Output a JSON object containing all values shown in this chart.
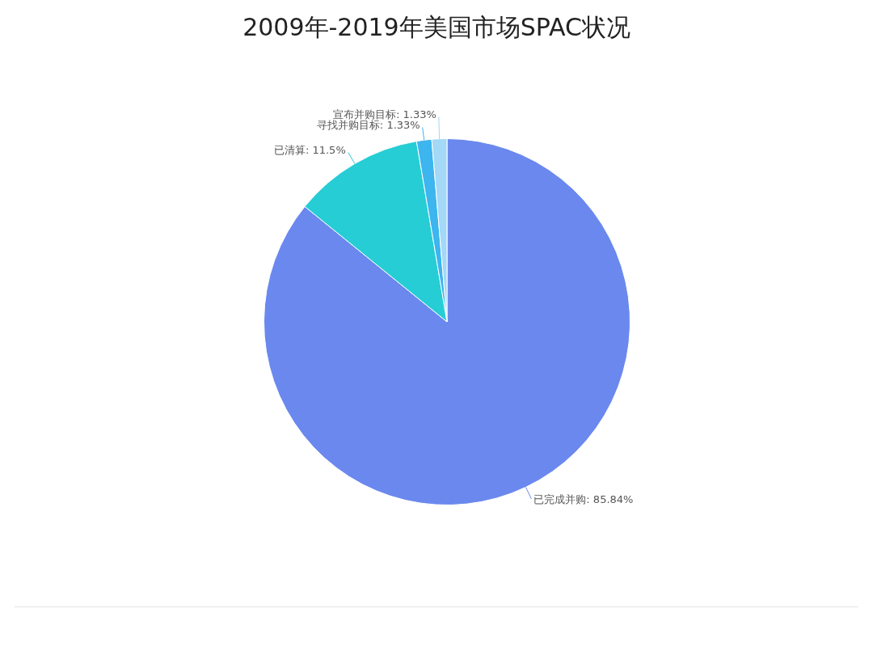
{
  "chart_data": {
    "type": "pie",
    "title": "2009年-2019年美国市场SPAC状况",
    "categories": [
      "已完成并购",
      "已清算",
      "寻找并购目标",
      "宣布并购目标"
    ],
    "values": [
      85.84,
      11.5,
      1.33,
      1.33
    ],
    "colors": [
      "#6a88ee",
      "#26cdd5",
      "#3db5ee",
      "#a3d8f7"
    ],
    "value_labels": [
      "85.84%",
      "11.5%",
      "1.33%",
      "1.33%"
    ]
  }
}
